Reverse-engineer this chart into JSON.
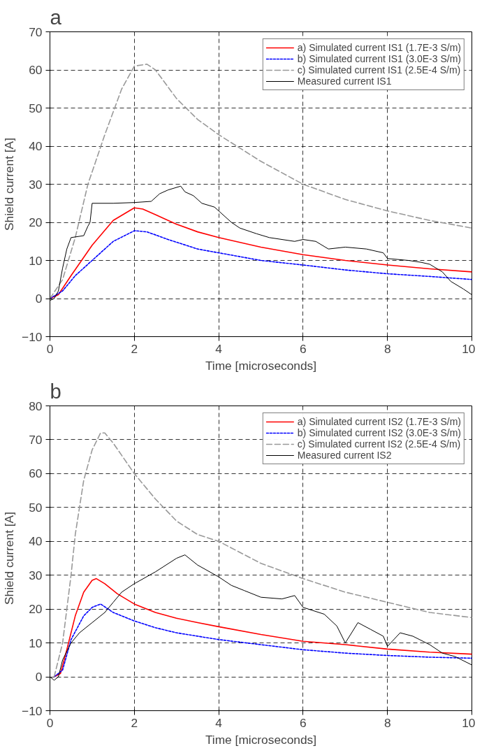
{
  "chart_data": [
    {
      "type": "line",
      "title": "a",
      "xlabel": "Time [microseconds]",
      "ylabel": "Shield current [A]",
      "xlim": [
        0,
        10
      ],
      "ylim": [
        -10,
        70
      ],
      "xticks": [
        0,
        2,
        4,
        6,
        8,
        10
      ],
      "yticks": [
        -10,
        0,
        10,
        20,
        30,
        40,
        50,
        60,
        70
      ],
      "grid": true,
      "legend": "top right",
      "series": [
        {
          "name": "a) Simulated current IS1 (1.7E-3 S/m)",
          "color": "#ff0000",
          "line_style": "solid",
          "x": [
            0,
            0.2,
            0.5,
            1,
            1.5,
            2,
            2.2,
            2.5,
            3,
            3.5,
            4,
            5,
            6,
            7,
            8,
            9,
            10
          ],
          "values": [
            0,
            1,
            6,
            14,
            20.5,
            23.8,
            23.5,
            22,
            19.5,
            17.5,
            16,
            13.5,
            11.5,
            10,
            8.8,
            7.8,
            7
          ]
        },
        {
          "name": "b) Simulated current IS1 (3.0E-3 S/m)",
          "color": "#0000ff",
          "line_style": "dotted",
          "x": [
            0,
            0.3,
            0.6,
            1,
            1.5,
            2,
            2.3,
            2.8,
            3.5,
            4,
            5,
            6,
            7,
            8,
            9,
            10
          ],
          "values": [
            0,
            2,
            6,
            10,
            15,
            17.8,
            17.5,
            15.5,
            13,
            12,
            10,
            8.8,
            7.5,
            6.5,
            5.8,
            5
          ]
        },
        {
          "name": "c) Simulated current IS1 (2.5E-4 S/m)",
          "color": "#999999",
          "line_style": "dashed",
          "x": [
            0,
            0.3,
            0.6,
            0.9,
            1.3,
            1.7,
            2,
            2.3,
            2.5,
            3,
            3.5,
            4,
            5,
            6,
            7,
            8,
            9,
            10
          ],
          "values": [
            0,
            5,
            16,
            30,
            43,
            55,
            61,
            61.5,
            60,
            52.5,
            47,
            43,
            36,
            30,
            26,
            23,
            20.5,
            18.5
          ]
        },
        {
          "name": "Measured current IS1",
          "color": "#000000",
          "line_style": "solid",
          "x": [
            0,
            0.1,
            0.2,
            0.3,
            0.4,
            0.5,
            0.8,
            0.9,
            0.95,
            1.0,
            1.5,
            2,
            2.4,
            2.6,
            2.8,
            3.1,
            3.2,
            3.4,
            3.6,
            3.9,
            4.0,
            4.3,
            4.5,
            4.9,
            5.2,
            5.8,
            6.0,
            6.3,
            6.6,
            7,
            7.5,
            7.9,
            8.0,
            8.5,
            8.8,
            9.0,
            9.3,
            9.5,
            9.8,
            10
          ],
          "values": [
            -0.5,
            0,
            2,
            8,
            13,
            16,
            16.5,
            19,
            20,
            25,
            25,
            25.2,
            25.5,
            27.5,
            28.5,
            29.5,
            28,
            27,
            25,
            24,
            23,
            20,
            18.5,
            17,
            16,
            15,
            15.5,
            15,
            13,
            13.5,
            13,
            12,
            10.5,
            10,
            9.5,
            9,
            7,
            4.5,
            2.5,
            1
          ]
        }
      ]
    },
    {
      "type": "line",
      "title": "b",
      "xlabel": "Time [microseconds]",
      "ylabel": "Shield current [A]",
      "xlim": [
        0,
        10
      ],
      "ylim": [
        -10,
        80
      ],
      "xticks": [
        0,
        2,
        4,
        6,
        8,
        10
      ],
      "yticks": [
        -10,
        0,
        10,
        20,
        30,
        40,
        50,
        60,
        70,
        80
      ],
      "grid": true,
      "legend": "top right",
      "series": [
        {
          "name": "a) Simulated current IS2 (1.7E-3 S/m)",
          "color": "#ff0000",
          "line_style": "solid",
          "x": [
            0.1,
            0.25,
            0.4,
            0.6,
            0.8,
            1.0,
            1.1,
            1.3,
            1.6,
            2,
            2.5,
            3,
            3.5,
            4,
            5,
            6,
            7,
            8,
            9,
            10
          ],
          "values": [
            0,
            1,
            8,
            18,
            25,
            28.5,
            29,
            27.5,
            24.5,
            21.5,
            19,
            17.3,
            16,
            14.8,
            12.5,
            10.5,
            9.5,
            8.2,
            7.3,
            6.7
          ]
        },
        {
          "name": "b) Simulated current IS2 (3.0E-3 S/m)",
          "color": "#0000ff",
          "line_style": "dotted",
          "x": [
            0.1,
            0.3,
            0.5,
            0.8,
            1.0,
            1.2,
            1.5,
            2,
            2.5,
            3,
            4,
            5,
            6,
            7,
            8,
            9,
            10
          ],
          "values": [
            0,
            2,
            11,
            18,
            20.5,
            21.5,
            19,
            16.5,
            14.5,
            13,
            11,
            9.5,
            8,
            7,
            6.3,
            5.8,
            5.5
          ]
        },
        {
          "name": "c) Simulated current IS2 (2.5E-4 S/m)",
          "color": "#999999",
          "line_style": "dashed",
          "x": [
            0.1,
            0.3,
            0.5,
            0.6,
            0.8,
            1.0,
            1.2,
            1.3,
            1.5,
            2,
            2.5,
            3,
            3.5,
            4,
            5,
            6,
            7,
            8,
            9,
            10
          ],
          "values": [
            0,
            10,
            30,
            42,
            58,
            67,
            72,
            72,
            69,
            60,
            52.5,
            46,
            42,
            40,
            33.5,
            29,
            25,
            22,
            19,
            17.5
          ]
        },
        {
          "name": "Measured current IS2",
          "color": "#000000",
          "line_style": "solid",
          "x": [
            0,
            0.1,
            0.2,
            0.3,
            0.5,
            0.7,
            1,
            1.3,
            1.5,
            1.7,
            2,
            2.5,
            3,
            3.2,
            3.5,
            4,
            4.3,
            4.6,
            5,
            5.5,
            5.8,
            6,
            6.5,
            6.8,
            7.0,
            7.3,
            7.6,
            7.9,
            8,
            8.3,
            8.6,
            9,
            9.3,
            9.6,
            10
          ],
          "values": [
            0,
            -1,
            0,
            5,
            10,
            13,
            16,
            19,
            22,
            25,
            27.5,
            31,
            35,
            36,
            33,
            29.5,
            27,
            25.5,
            23.5,
            23,
            24,
            20.5,
            18.5,
            15,
            10,
            16,
            14,
            12,
            9,
            13,
            12,
            9.5,
            7,
            6,
            3.5
          ]
        }
      ]
    }
  ]
}
